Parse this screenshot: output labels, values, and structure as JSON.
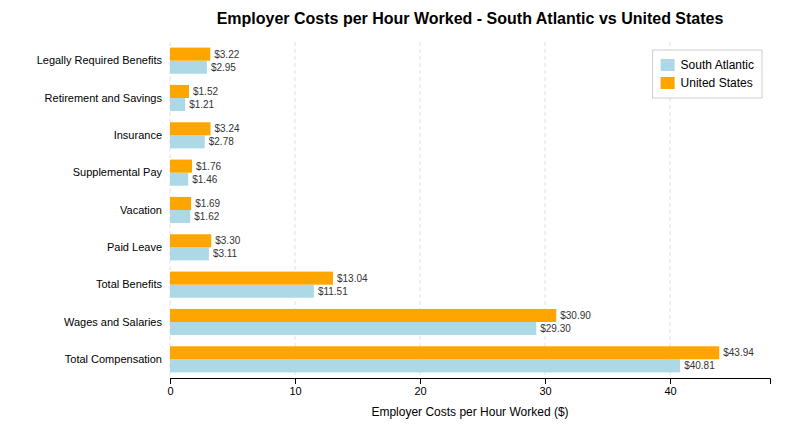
{
  "chart_data": {
    "type": "bar",
    "orientation": "horizontal",
    "title": "Employer Costs per Hour Worked - South Atlantic vs United States",
    "xlabel": "Employer Costs per Hour Worked ($)",
    "categories": [
      "Total Compensation",
      "Wages and Salaries",
      "Total Benefits",
      "Paid Leave",
      "Vacation",
      "Supplemental Pay",
      "Insurance",
      "Retirement and Savings",
      "Legally Required Benefits"
    ],
    "series": [
      {
        "name": "South Atlantic",
        "color": "#ADD8E6",
        "values": [
          40.81,
          29.3,
          11.51,
          3.11,
          1.62,
          1.46,
          2.78,
          1.21,
          2.95
        ],
        "value_labels": [
          "$40.81",
          "$29.30",
          "$11.51",
          "$3.11",
          "$1.62",
          "$1.46",
          "$2.78",
          "$1.21",
          "$2.95"
        ]
      },
      {
        "name": "United States",
        "color": "#FFA500",
        "values": [
          43.94,
          30.9,
          13.04,
          3.3,
          1.69,
          1.76,
          3.24,
          1.52,
          3.22
        ],
        "value_labels": [
          "$43.94",
          "$30.90",
          "$13.04",
          "$3.30",
          "$1.69",
          "$1.76",
          "$3.24",
          "$1.52",
          "$3.22"
        ]
      }
    ],
    "xlim": [
      0,
      48
    ],
    "xticks": [
      0,
      10,
      20,
      30,
      40
    ],
    "grid": true,
    "legend": "upper right",
    "data_labels": true
  }
}
